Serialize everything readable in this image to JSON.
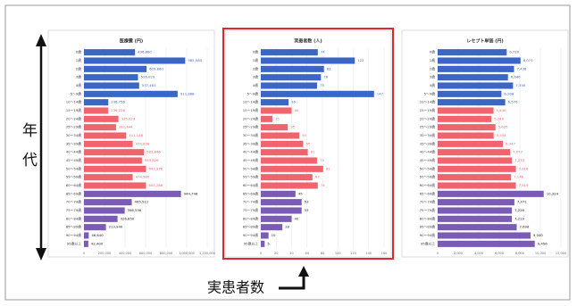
{
  "chart_data": [
    {
      "type": "barh",
      "title": "医療費 (円)",
      "categories": [
        "0歳",
        "1歳",
        "2歳",
        "3歳",
        "4歳",
        "5～9歳",
        "10～14歳",
        "15～19歳",
        "20～24歳",
        "25～29歳",
        "30～34歳",
        "35～39歳",
        "40～44歳",
        "45～49歳",
        "50～54歳",
        "55～59歳",
        "60～64歳",
        "65～69歳",
        "70～74歳",
        "75～79歳",
        "80～84歳",
        "85～89歳",
        "90～94歳",
        "95歳以上"
      ],
      "values": [
        496880,
        985580,
        609860,
        526029,
        537463,
        911888,
        236756,
        236228,
        335624,
        311844,
        411148,
        474638,
        583846,
        563826,
        603978,
        474580,
        603286,
        944748,
        465512,
        396556,
        326850,
        213940,
        46640,
        42400
      ],
      "value_labels": [
        "496,880",
        "985,580",
        "609,860",
        "526,029",
        "537,463",
        "911,888",
        "236,756",
        "236,228",
        "335,624",
        "311,844",
        "411,148",
        "474,638",
        "583,846",
        "563,826",
        "603,978",
        "474,580",
        "603,286",
        "944,748",
        "465,512",
        "396,556",
        "326,850",
        "213,940",
        "46,640",
        "42,400"
      ],
      "colors": [
        "#3b66c6",
        "#3b66c6",
        "#3b66c6",
        "#3b66c6",
        "#3b66c6",
        "#3b66c6",
        "#3b66c6",
        "#f0646e",
        "#f0646e",
        "#f0646e",
        "#f0646e",
        "#f0646e",
        "#f0646e",
        "#f0646e",
        "#f0646e",
        "#f0646e",
        "#f0646e",
        "#7a5cb4",
        "#7a5cb4",
        "#7a5cb4",
        "#7a5cb4",
        "#7a5cb4",
        "#7a5cb4",
        "#7a5cb4"
      ],
      "xlim": [
        0,
        1200000
      ],
      "xticks": [
        0,
        {
          "value": 200000,
          "label": "200,000"
        },
        {
          "value": 400000,
          "label": "400,000"
        },
        {
          "value": 600000,
          "label": "600,000"
        },
        {
          "value": 800000,
          "label": "800,000"
        },
        {
          "value": 1000000,
          "label": "1,000,000"
        },
        {
          "value": 1200000,
          "label": "1,200,000"
        }
      ],
      "grid": true
    },
    {
      "type": "barh",
      "title": "実患者数 (人)",
      "categories": [
        "0歳",
        "1歳",
        "2歳",
        "3歳",
        "4歳",
        "5～9歳",
        "10～14歳",
        "15～19歳",
        "20～24歳",
        "25～29歳",
        "30～34歳",
        "35～39歳",
        "40～44歳",
        "45～49歳",
        "50～54歳",
        "55～59歳",
        "60～64歳",
        "65～69歳",
        "70～74歳",
        "75～79歳",
        "80～84歳",
        "85～89歳",
        "90～94歳",
        "95歳以上"
      ],
      "values": [
        74,
        122,
        82,
        78,
        73,
        147,
        36,
        40,
        15,
        35,
        50,
        55,
        61,
        73,
        81,
        67,
        74,
        45,
        53,
        53,
        40,
        28,
        10,
        5
      ],
      "colors": [
        "#3b66c6",
        "#3b66c6",
        "#3b66c6",
        "#3b66c6",
        "#3b66c6",
        "#3b66c6",
        "#3b66c6",
        "#f0646e",
        "#f0646e",
        "#f0646e",
        "#f0646e",
        "#f0646e",
        "#f0646e",
        "#f0646e",
        "#f0646e",
        "#f0646e",
        "#f0646e",
        "#7a5cb4",
        "#7a5cb4",
        "#7a5cb4",
        "#7a5cb4",
        "#7a5cb4",
        "#7a5cb4",
        "#7a5cb4"
      ],
      "xlim": [
        0,
        160
      ],
      "xticks": [
        0,
        20,
        40,
        60,
        80,
        100,
        120,
        140,
        160
      ],
      "grid": true,
      "highlight": "#e0262e"
    },
    {
      "type": "barh",
      "title": "レセプト単価 (円)",
      "categories": [
        "0歳",
        "1歳",
        "2歳",
        "3歳",
        "4歳",
        "5～9歳",
        "10～14歳",
        "15～19歳",
        "20～24歳",
        "25～29歳",
        "30～34歳",
        "35～39歳",
        "40～44歳",
        "45～49歳",
        "50～54歳",
        "55～59歳",
        "60～64歳",
        "65～69歳",
        "70～74歳",
        "75～79歳",
        "80～84歳",
        "85～89歳",
        "90～94歳",
        "95歳以上"
      ],
      "values": [
        6720,
        8071,
        7438,
        6846,
        7340,
        6208,
        6576,
        5440,
        5240,
        5625,
        5454,
        6347,
        7057,
        7233,
        7618,
        7148,
        7619,
        10324,
        7471,
        7226,
        7219,
        7698,
        9040,
        9456
      ],
      "value_labels": [
        "6,720",
        "8,071",
        "7,438",
        "6,846",
        "7,340",
        "6,208",
        "6,576",
        "5,440",
        "5,240",
        "5,625",
        "5,454",
        "6,347",
        "7,057",
        "7,233",
        "7,618",
        "7,148",
        "7,619",
        "10,324",
        "7,471",
        "7,226",
        "7,219",
        "7,698",
        "9,040",
        "9,456"
      ],
      "colors": [
        "#3b66c6",
        "#3b66c6",
        "#3b66c6",
        "#3b66c6",
        "#3b66c6",
        "#3b66c6",
        "#3b66c6",
        "#f0646e",
        "#f0646e",
        "#f0646e",
        "#f0646e",
        "#f0646e",
        "#f0646e",
        "#f0646e",
        "#f0646e",
        "#f0646e",
        "#f0646e",
        "#7a5cb4",
        "#7a5cb4",
        "#7a5cb4",
        "#7a5cb4",
        "#7a5cb4",
        "#7a5cb4",
        "#7a5cb4"
      ],
      "xlim": [
        0,
        12000
      ],
      "xticks": [
        0,
        {
          "value": 2000,
          "label": "2,000"
        },
        {
          "value": 4000,
          "label": "4,000"
        },
        {
          "value": 6000,
          "label": "6,000"
        },
        {
          "value": 8000,
          "label": "8,000"
        },
        {
          "value": 10000,
          "label": "10,000"
        },
        {
          "value": 12000,
          "label": "12,000"
        }
      ],
      "grid": true
    }
  ],
  "side_label": "年代",
  "bottom_label": "実患者数"
}
